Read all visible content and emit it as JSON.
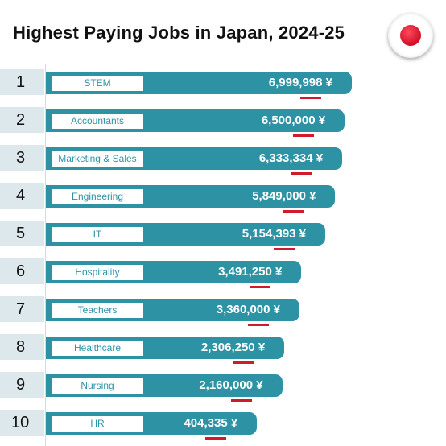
{
  "title": "Highest Paying Jobs in Japan, 2024-25",
  "icons": {
    "flag": "japan-flag-icon"
  },
  "colors": {
    "bar": "#2d93a4",
    "rank_bg": "#dde8ec",
    "underline": "#d01b2c"
  },
  "chart_data": {
    "type": "bar",
    "orientation": "horizontal",
    "title": "Highest Paying Jobs in Japan, 2024-25",
    "ranks": [
      "1",
      "2",
      "3",
      "4",
      "5",
      "6",
      "7",
      "8",
      "9",
      "10"
    ],
    "categories": [
      "STEM",
      "Accountants",
      "Marketing & Sales",
      "Engineering",
      "IT",
      "Hospitality",
      "Teachers",
      "Healthcare",
      "Nursing",
      "HR"
    ],
    "values": [
      6999998,
      6500000,
      6333334,
      5849000,
      5154393,
      3491250,
      3360000,
      2306250,
      2160000,
      404335
    ],
    "labels": [
      "6,999,998",
      "6,500,000",
      "6,333,334",
      "5,849,000",
      "5,154,393",
      "3,491,250",
      "3,360,000",
      "2,306,250",
      "2,160,000",
      "404,335"
    ],
    "unit": "¥"
  }
}
